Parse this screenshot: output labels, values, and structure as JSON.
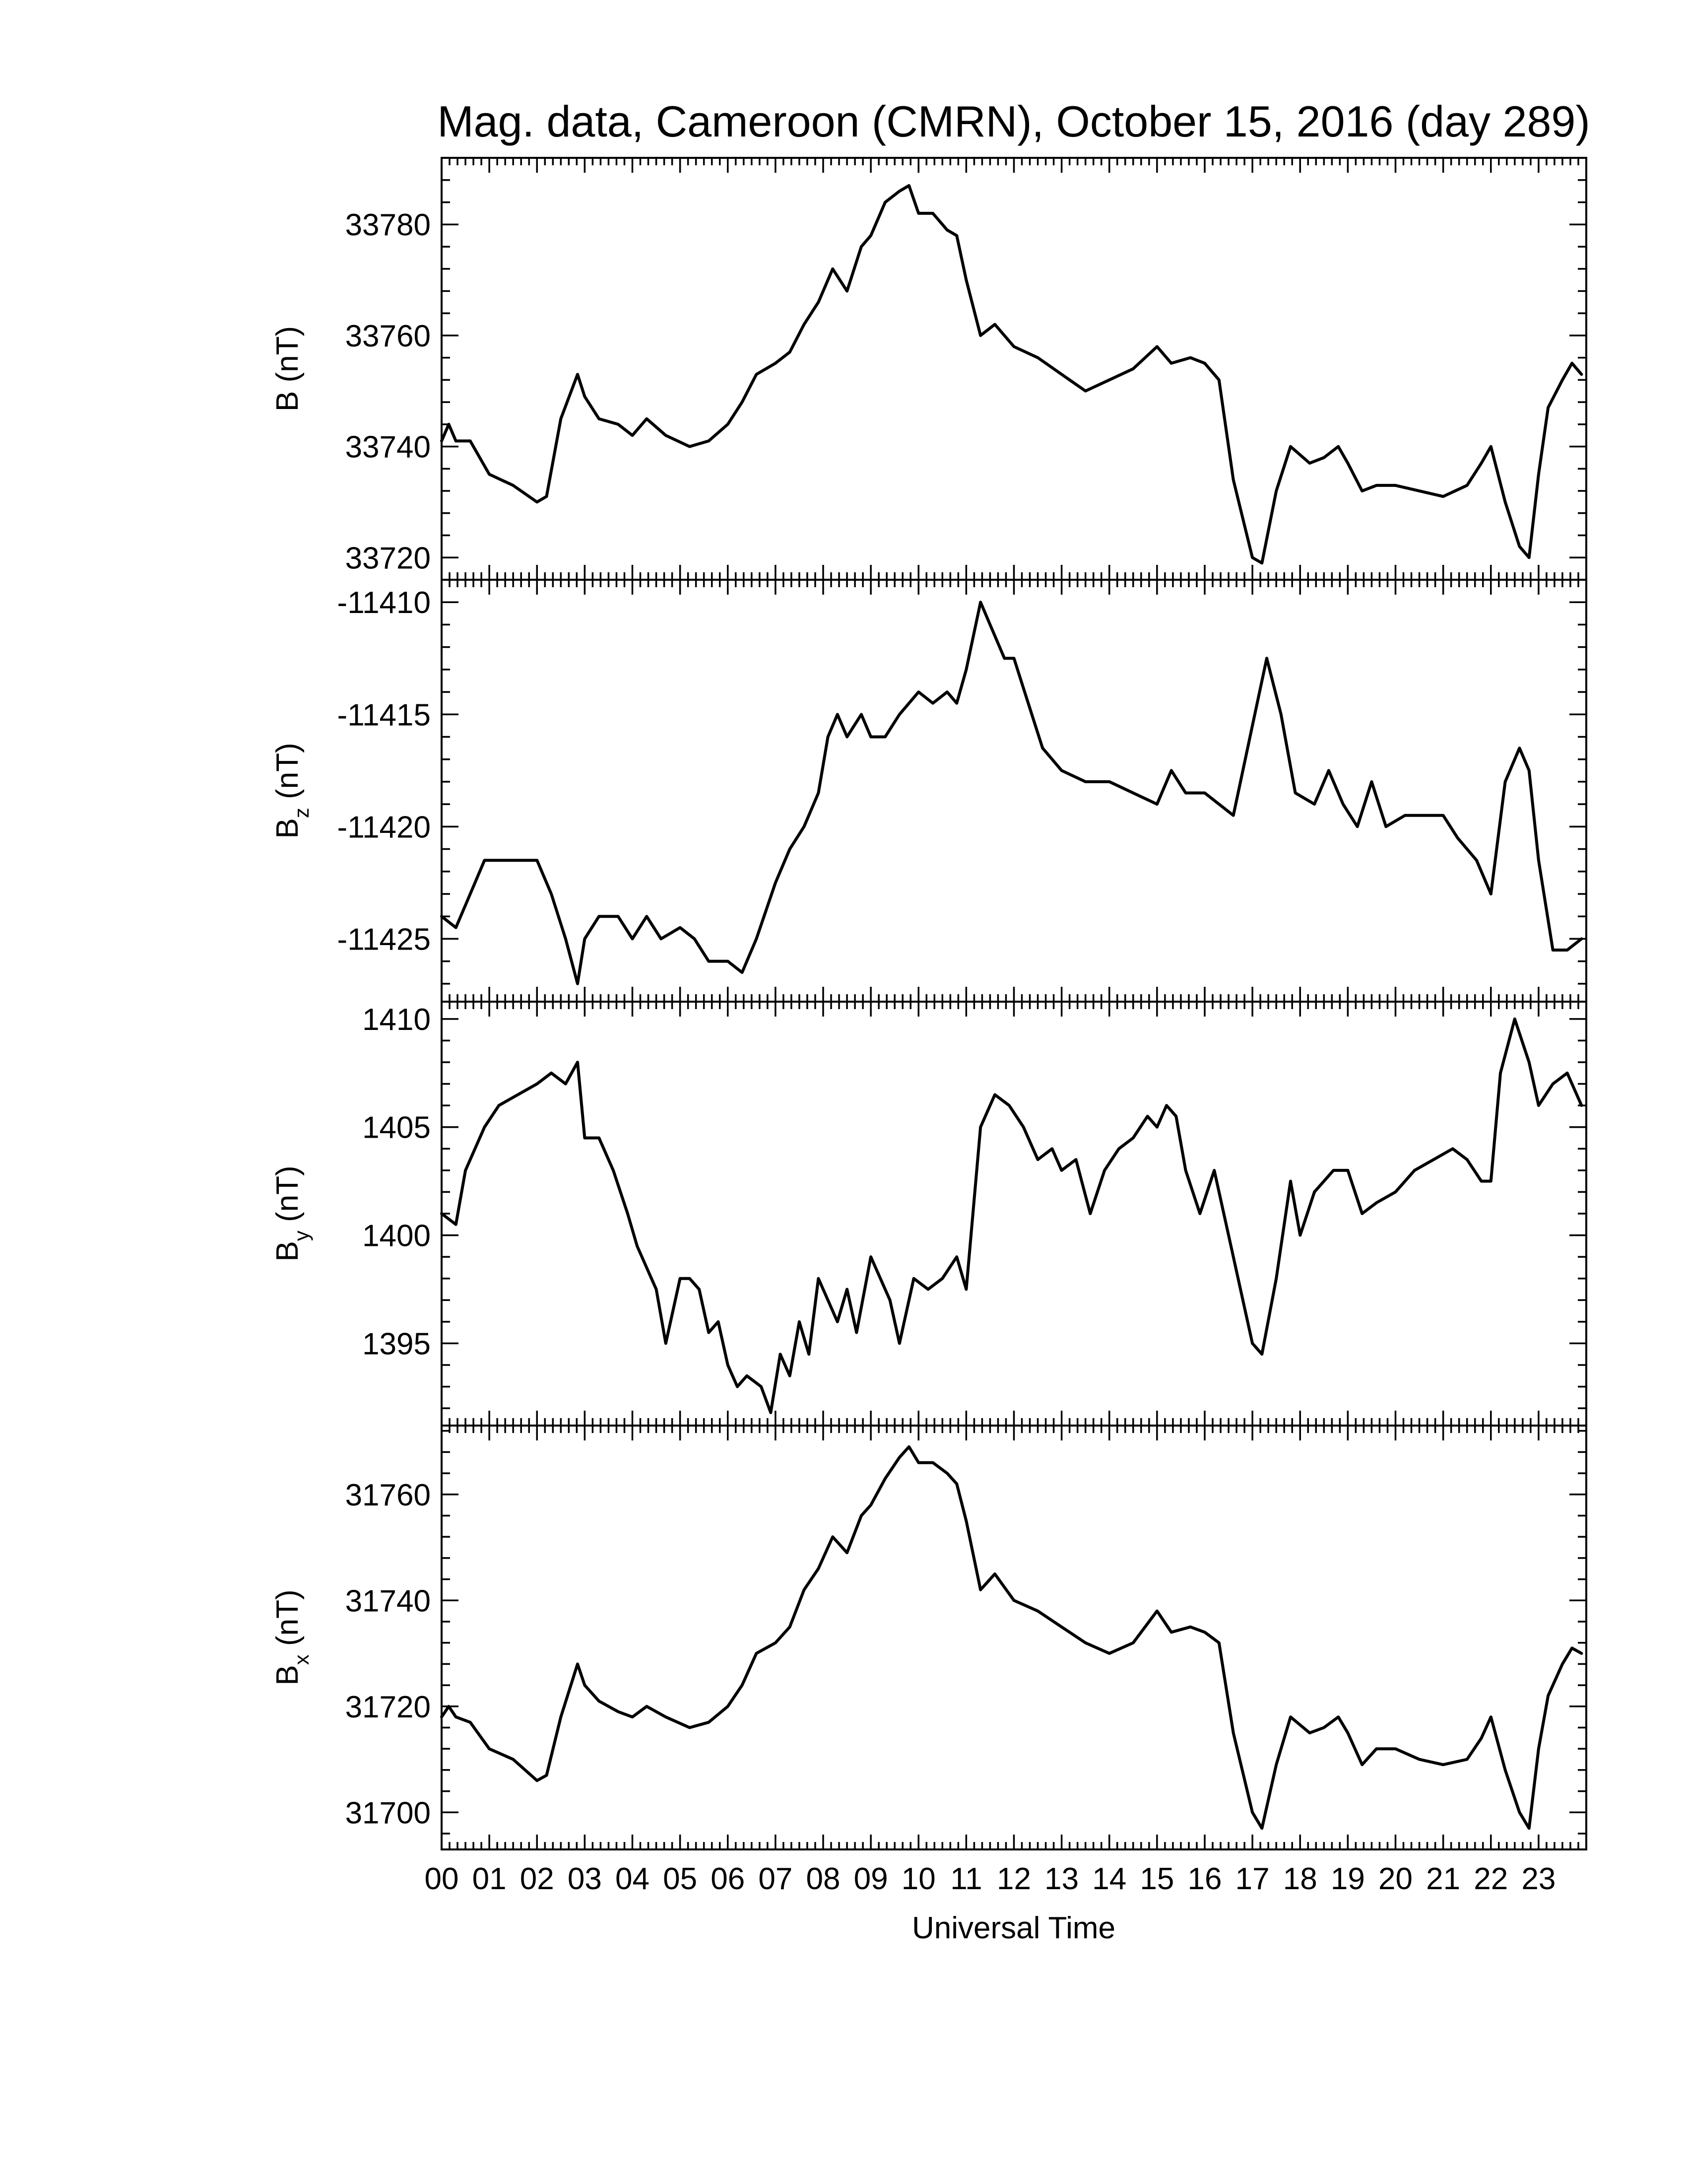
{
  "chart_data": {
    "type": "line",
    "title": "Mag. data, Cameroon (CMRN), October 15, 2016 (day 289)",
    "xlabel": "Universal Time",
    "x_tick_labels": [
      "00",
      "01",
      "02",
      "03",
      "04",
      "05",
      "06",
      "07",
      "08",
      "09",
      "10",
      "11",
      "12",
      "13",
      "14",
      "15",
      "16",
      "17",
      "18",
      "19",
      "20",
      "21",
      "22",
      "23"
    ],
    "xlim": [
      0,
      24
    ],
    "color": "#000000",
    "panels": [
      {
        "id": "B",
        "ylabel": {
          "main": "B",
          "sub": "",
          "unit": "(nT)"
        },
        "ylim": [
          33716,
          33792
        ],
        "yticks": [
          33720,
          33740,
          33760,
          33780
        ],
        "x": [
          0.0,
          0.15,
          0.3,
          0.6,
          1.0,
          1.5,
          2.0,
          2.2,
          2.5,
          2.85,
          3.0,
          3.3,
          3.7,
          4.0,
          4.3,
          4.7,
          5.2,
          5.6,
          6.0,
          6.3,
          6.6,
          7.0,
          7.3,
          7.6,
          7.9,
          8.2,
          8.5,
          8.8,
          9.0,
          9.3,
          9.6,
          9.8,
          10.0,
          10.3,
          10.6,
          10.8,
          11.0,
          11.3,
          11.6,
          12.0,
          12.5,
          13.0,
          13.5,
          14.0,
          14.5,
          15.0,
          15.3,
          15.7,
          16.0,
          16.3,
          16.6,
          17.0,
          17.2,
          17.5,
          17.8,
          18.2,
          18.5,
          18.8,
          19.0,
          19.3,
          19.6,
          20.0,
          20.5,
          21.0,
          21.5,
          21.8,
          22.0,
          22.3,
          22.6,
          22.8,
          23.0,
          23.2,
          23.5,
          23.7,
          23.9
        ],
        "values": [
          33741,
          33744,
          33741,
          33741,
          33735,
          33733,
          33730,
          33731,
          33745,
          33753,
          33749,
          33745,
          33744,
          33742,
          33745,
          33742,
          33740,
          33741,
          33744,
          33748,
          33753,
          33755,
          33757,
          33762,
          33766,
          33772,
          33768,
          33776,
          33778,
          33784,
          33786,
          33787,
          33782,
          33782,
          33779,
          33778,
          33770,
          33760,
          33762,
          33758,
          33756,
          33753,
          33750,
          33752,
          33754,
          33758,
          33755,
          33756,
          33755,
          33752,
          33734,
          33720,
          33719,
          33732,
          33740,
          33737,
          33738,
          33740,
          33737,
          33732,
          33733,
          33733,
          33732,
          33731,
          33733,
          33737,
          33740,
          33730,
          33722,
          33720,
          33735,
          33747,
          33752,
          33755,
          33753
        ]
      },
      {
        "id": "Bz",
        "ylabel": {
          "main": "B",
          "sub": "z",
          "unit": "(nT)"
        },
        "ylim": [
          -11427.8,
          -11409.0
        ],
        "yticks": [
          -11410,
          -11415,
          -11420,
          -11425
        ],
        "x": [
          0.0,
          0.3,
          0.6,
          0.9,
          1.2,
          1.5,
          2.0,
          2.3,
          2.6,
          2.85,
          3.0,
          3.3,
          3.7,
          4.0,
          4.3,
          4.6,
          5.0,
          5.3,
          5.6,
          6.0,
          6.3,
          6.6,
          7.0,
          7.3,
          7.6,
          7.9,
          8.1,
          8.3,
          8.5,
          8.8,
          9.0,
          9.3,
          9.6,
          10.0,
          10.3,
          10.6,
          10.8,
          11.0,
          11.3,
          11.5,
          11.8,
          12.0,
          12.3,
          12.6,
          13.0,
          13.5,
          14.0,
          14.5,
          15.0,
          15.3,
          15.6,
          16.0,
          16.3,
          16.6,
          17.0,
          17.3,
          17.6,
          17.9,
          18.3,
          18.6,
          18.9,
          19.2,
          19.5,
          19.8,
          20.2,
          20.6,
          21.0,
          21.3,
          21.7,
          22.0,
          22.3,
          22.6,
          22.8,
          23.0,
          23.3,
          23.6,
          23.9
        ],
        "values": [
          -11424,
          -11424.5,
          -11423,
          -11421.5,
          -11421.5,
          -11421.5,
          -11421.5,
          -11423,
          -11425,
          -11427,
          -11425,
          -11424,
          -11424,
          -11425,
          -11424,
          -11425,
          -11424.5,
          -11425,
          -11426,
          -11426,
          -11426.5,
          -11425,
          -11422.5,
          -11421,
          -11420,
          -11418.5,
          -11416,
          -11415,
          -11416,
          -11415,
          -11416,
          -11416,
          -11415,
          -11414,
          -11414.5,
          -11414,
          -11414.5,
          -11413,
          -11410,
          -11411,
          -11412.5,
          -11412.5,
          -11414.5,
          -11416.5,
          -11417.5,
          -11418,
          -11418,
          -11418.5,
          -11419,
          -11417.5,
          -11418.5,
          -11418.5,
          -11419,
          -11419.5,
          -11415.5,
          -11412.5,
          -11415,
          -11418.5,
          -11419,
          -11417.5,
          -11419,
          -11420,
          -11418,
          -11420,
          -11419.5,
          -11419.5,
          -11419.5,
          -11420.5,
          -11421.5,
          -11423,
          -11418,
          -11416.5,
          -11417.5,
          -11421.5,
          -11425.5,
          -11425.5,
          -11425
        ]
      },
      {
        "id": "By",
        "ylabel": {
          "main": "B",
          "sub": "y",
          "unit": "(nT)"
        },
        "ylim": [
          1391.2,
          1410.8
        ],
        "yticks": [
          1410,
          1405,
          1400,
          1395
        ],
        "x": [
          0.0,
          0.3,
          0.5,
          0.9,
          1.2,
          1.6,
          2.0,
          2.3,
          2.6,
          2.85,
          3.0,
          3.3,
          3.6,
          3.9,
          4.1,
          4.3,
          4.5,
          4.7,
          5.0,
          5.2,
          5.4,
          5.6,
          5.8,
          6.0,
          6.2,
          6.4,
          6.7,
          6.9,
          7.1,
          7.3,
          7.5,
          7.7,
          7.9,
          8.1,
          8.3,
          8.5,
          8.7,
          9.0,
          9.2,
          9.4,
          9.6,
          9.9,
          10.2,
          10.5,
          10.8,
          11.0,
          11.3,
          11.6,
          11.9,
          12.2,
          12.5,
          12.8,
          13.0,
          13.3,
          13.6,
          13.9,
          14.2,
          14.5,
          14.8,
          15.0,
          15.2,
          15.4,
          15.6,
          15.9,
          16.2,
          16.5,
          16.8,
          17.0,
          17.2,
          17.5,
          17.8,
          18.0,
          18.3,
          18.7,
          19.0,
          19.3,
          19.6,
          20.0,
          20.4,
          20.8,
          21.2,
          21.5,
          21.8,
          22.0,
          22.2,
          22.5,
          22.8,
          23.0,
          23.3,
          23.6,
          23.9
        ],
        "values": [
          1401,
          1400.5,
          1403,
          1405,
          1406,
          1406.5,
          1407,
          1407.5,
          1407,
          1408,
          1404.5,
          1404.5,
          1403,
          1401,
          1399.5,
          1398.5,
          1397.5,
          1395,
          1398,
          1398,
          1397.5,
          1395.5,
          1396,
          1394,
          1393,
          1393.5,
          1393,
          1391.8,
          1394.5,
          1393.5,
          1396,
          1394.5,
          1398,
          1397,
          1396,
          1397.5,
          1395.5,
          1399,
          1398,
          1397,
          1395,
          1398,
          1397.5,
          1398,
          1399,
          1397.5,
          1405,
          1406.5,
          1406,
          1405,
          1403.5,
          1404,
          1403,
          1403.5,
          1401,
          1403,
          1404,
          1404.5,
          1405.5,
          1405,
          1406,
          1405.5,
          1403,
          1401,
          1403,
          1400,
          1397,
          1395,
          1394.5,
          1398,
          1402.5,
          1400,
          1402,
          1403,
          1403,
          1401,
          1401.5,
          1402,
          1403,
          1403.5,
          1404,
          1403.5,
          1402.5,
          1402.5,
          1407.5,
          1410,
          1408,
          1406,
          1407,
          1407.5,
          1406
        ]
      },
      {
        "id": "Bx",
        "ylabel": {
          "main": "B",
          "sub": "x",
          "unit": "(nT)"
        },
        "ylim": [
          31693,
          31773
        ],
        "yticks": [
          31700,
          31720,
          31740,
          31760
        ],
        "x": [
          0.0,
          0.15,
          0.3,
          0.6,
          1.0,
          1.5,
          2.0,
          2.2,
          2.5,
          2.85,
          3.0,
          3.3,
          3.7,
          4.0,
          4.3,
          4.7,
          5.2,
          5.6,
          6.0,
          6.3,
          6.6,
          7.0,
          7.3,
          7.6,
          7.9,
          8.2,
          8.5,
          8.8,
          9.0,
          9.3,
          9.6,
          9.8,
          10.0,
          10.3,
          10.6,
          10.8,
          11.0,
          11.3,
          11.6,
          12.0,
          12.5,
          13.0,
          13.5,
          14.0,
          14.5,
          15.0,
          15.3,
          15.7,
          16.0,
          16.3,
          16.6,
          17.0,
          17.2,
          17.5,
          17.8,
          18.2,
          18.5,
          18.8,
          19.0,
          19.3,
          19.6,
          20.0,
          20.5,
          21.0,
          21.5,
          21.8,
          22.0,
          22.3,
          22.6,
          22.8,
          23.0,
          23.2,
          23.5,
          23.7,
          23.9
        ],
        "values": [
          31718,
          31720,
          31718,
          31717,
          31712,
          31710,
          31706,
          31707,
          31718,
          31728,
          31724,
          31721,
          31719,
          31718,
          31720,
          31718,
          31716,
          31717,
          31720,
          31724,
          31730,
          31732,
          31735,
          31742,
          31746,
          31752,
          31749,
          31756,
          31758,
          31763,
          31767,
          31769,
          31766,
          31766,
          31764,
          31762,
          31755,
          31742,
          31745,
          31740,
          31738,
          31735,
          31732,
          31730,
          31732,
          31738,
          31734,
          31735,
          31734,
          31732,
          31715,
          31700,
          31697,
          31709,
          31718,
          31715,
          31716,
          31718,
          31715,
          31709,
          31712,
          31712,
          31710,
          31709,
          31710,
          31714,
          31718,
          31708,
          31700,
          31697,
          31712,
          31722,
          31728,
          31731,
          31730
        ]
      }
    ]
  }
}
